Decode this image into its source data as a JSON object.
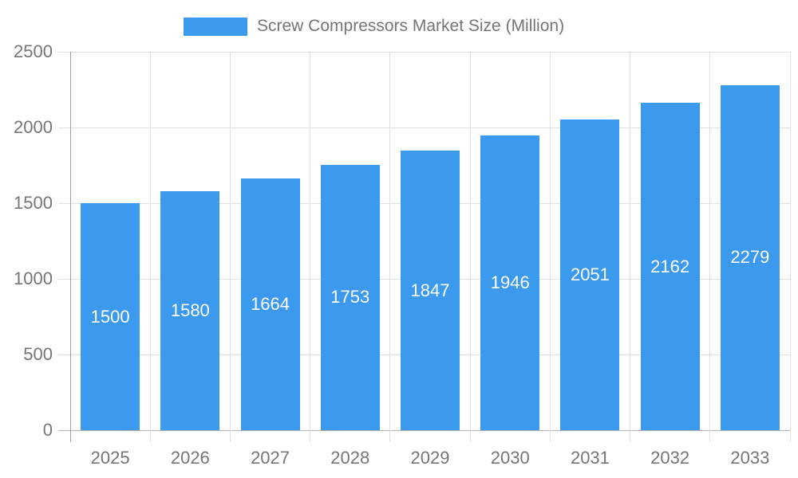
{
  "chart_data": {
    "type": "bar",
    "title": "Screw Compressors Market Size (Million)",
    "categories": [
      "2025",
      "2026",
      "2027",
      "2028",
      "2029",
      "2030",
      "2031",
      "2032",
      "2033"
    ],
    "values": [
      1500,
      1580,
      1664,
      1753,
      1847,
      1946,
      2051,
      2162,
      2279
    ],
    "series": [
      {
        "name": "Screw Compressors Market Size (Million)",
        "values": [
          1500,
          1580,
          1664,
          1753,
          1847,
          1946,
          2051,
          2162,
          2279
        ]
      }
    ],
    "xlabel": "",
    "ylabel": "",
    "ylim": [
      0,
      2500
    ],
    "yticks": [
      0,
      500,
      1000,
      1500,
      2000,
      2500
    ],
    "grid": true,
    "legend_position": "top",
    "value_labels": "inside-center",
    "colors": {
      "bar": "#3b99ee",
      "value_label": "#ffffff",
      "gridline": "#e0e0e0",
      "baseline": "#b3b3b3",
      "axis_line": "#9e9e9e",
      "tick_label": "#757575",
      "legend_text": "#757575",
      "background": "#ffffff"
    }
  }
}
